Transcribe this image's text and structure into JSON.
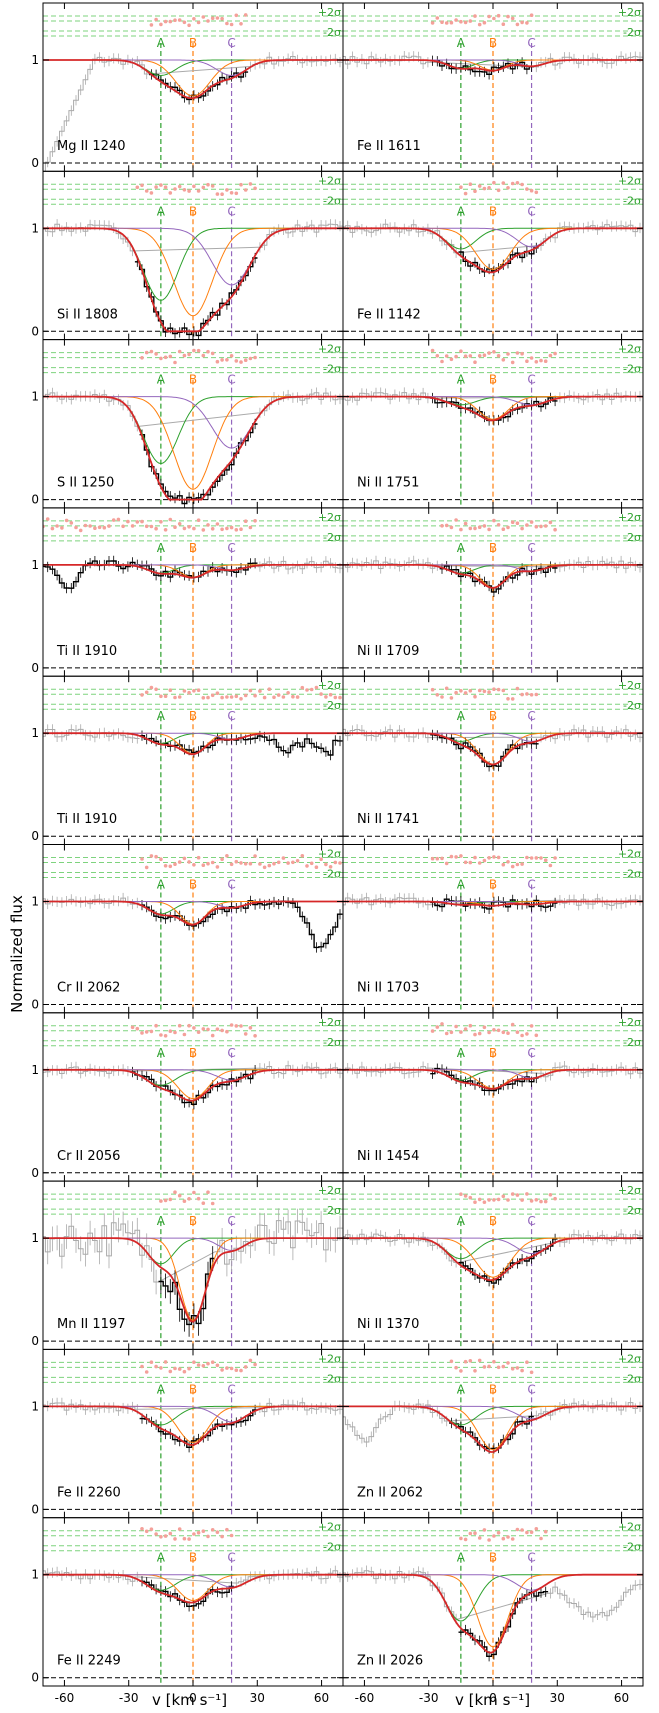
{
  "figure": {
    "ylabel": "Normalized flux",
    "xlabel": "v [km s⁻¹]",
    "xticks": [
      -60,
      -30,
      0,
      30,
      60
    ],
    "yticks": [
      "0",
      "1"
    ],
    "sigma_labels": [
      "+2σ",
      "-2σ"
    ],
    "components": [
      {
        "name": "A",
        "v": -15,
        "color": "#2ca02c"
      },
      {
        "name": "B",
        "v": 0,
        "color": "#ff7f0e"
      },
      {
        "name": "C",
        "v": 18,
        "color": "#9467bd"
      }
    ],
    "colors": {
      "data": "#aaaaaa",
      "fit_region": "#000000",
      "total_fit": "#d62728",
      "residuals": "#f4a09a",
      "sigma_lines": "#7ed37e"
    }
  },
  "chart_data": {
    "type": "line",
    "xlim": [
      -70,
      70
    ],
    "ylim": [
      0,
      1.4
    ],
    "panels": [
      {
        "label": "Mg II 1240",
        "col": 0,
        "row": 0,
        "depths": [
          0.15,
          0.35,
          0.15
        ],
        "widths": [
          7,
          8,
          7
        ],
        "fit_range": [
          -20,
          25
        ],
        "feature": "steep-rise-left"
      },
      {
        "label": "Si II 1808",
        "col": 0,
        "row": 1,
        "depths": [
          0.7,
          0.85,
          0.55
        ],
        "widths": [
          8,
          9,
          9
        ],
        "fit_range": [
          -28,
          30
        ]
      },
      {
        "label": "S II 1250",
        "col": 0,
        "row": 2,
        "depths": [
          0.65,
          0.9,
          0.5
        ],
        "widths": [
          8,
          9,
          9
        ],
        "fit_range": [
          -25,
          30
        ]
      },
      {
        "label": "Ti II 1910",
        "col": 0,
        "row": 3,
        "depths": [
          0.08,
          0.12,
          0.05
        ],
        "widths": [
          6,
          6,
          6
        ],
        "fit_range": [
          -70,
          30
        ],
        "feature": "dip-left"
      },
      {
        "label": "Ti II 1910",
        "col": 0,
        "row": 4,
        "depths": [
          0.1,
          0.2,
          0.06
        ],
        "widths": [
          6,
          6,
          6
        ],
        "fit_range": [
          -25,
          70
        ],
        "feature": "dips-right"
      },
      {
        "label": "Cr II 2062",
        "col": 0,
        "row": 5,
        "depths": [
          0.12,
          0.22,
          0.06
        ],
        "widths": [
          6,
          6,
          6
        ],
        "fit_range": [
          -25,
          70
        ],
        "feature": "big-dip-right"
      },
      {
        "label": "Cr II 2056",
        "col": 0,
        "row": 6,
        "depths": [
          0.15,
          0.28,
          0.1
        ],
        "widths": [
          7,
          7,
          7
        ],
        "fit_range": [
          -30,
          30
        ]
      },
      {
        "label": "Mn II 1197",
        "col": 0,
        "row": 7,
        "depths": [
          0.25,
          0.8,
          0.12
        ],
        "widths": [
          6,
          6,
          6
        ],
        "fit_range": [
          -15,
          10
        ],
        "feature": "noisy"
      },
      {
        "label": "Fe II 2260",
        "col": 0,
        "row": 8,
        "depths": [
          0.18,
          0.35,
          0.15
        ],
        "widths": [
          7,
          7,
          7
        ],
        "fit_range": [
          -25,
          30
        ]
      },
      {
        "label": "Fe II 2249",
        "col": 0,
        "row": 9,
        "depths": [
          0.15,
          0.25,
          0.12
        ],
        "widths": [
          7,
          7,
          7
        ],
        "fit_range": [
          -25,
          20
        ]
      },
      {
        "label": "Fe II 1611",
        "col": 1,
        "row": 0,
        "depths": [
          0.08,
          0.1,
          0.06
        ],
        "widths": [
          6,
          6,
          6
        ],
        "fit_range": [
          -30,
          20
        ]
      },
      {
        "label": "Fe II 1142",
        "col": 1,
        "row": 1,
        "depths": [
          0.2,
          0.4,
          0.18
        ],
        "widths": [
          7,
          8,
          7
        ],
        "fit_range": [
          -15,
          22
        ]
      },
      {
        "label": "Ni II 1751",
        "col": 1,
        "row": 2,
        "depths": [
          0.08,
          0.22,
          0.08
        ],
        "widths": [
          7,
          7,
          7
        ],
        "fit_range": [
          -30,
          30
        ]
      },
      {
        "label": "Ni II 1709",
        "col": 1,
        "row": 3,
        "depths": [
          0.08,
          0.22,
          0.06
        ],
        "widths": [
          6,
          6,
          6
        ],
        "fit_range": [
          -25,
          30
        ]
      },
      {
        "label": "Ni II 1741",
        "col": 1,
        "row": 4,
        "depths": [
          0.08,
          0.3,
          0.08
        ],
        "widths": [
          6,
          7,
          6
        ],
        "fit_range": [
          -30,
          22
        ]
      },
      {
        "label": "Ni II 1703",
        "col": 1,
        "row": 5,
        "depths": [
          0.03,
          0.04,
          0.03
        ],
        "widths": [
          6,
          6,
          6
        ],
        "fit_range": [
          -30,
          30
        ]
      },
      {
        "label": "Ni II 1454",
        "col": 1,
        "row": 6,
        "depths": [
          0.1,
          0.18,
          0.08
        ],
        "widths": [
          6,
          7,
          6
        ],
        "fit_range": [
          -30,
          22
        ]
      },
      {
        "label": "Ni II 1370",
        "col": 1,
        "row": 7,
        "depths": [
          0.2,
          0.38,
          0.15
        ],
        "widths": [
          7,
          8,
          7
        ],
        "fit_range": [
          -15,
          30
        ]
      },
      {
        "label": "Zn II 2062",
        "col": 1,
        "row": 8,
        "depths": [
          0.18,
          0.42,
          0.12
        ],
        "widths": [
          7,
          7,
          7
        ],
        "fit_range": [
          -20,
          20
        ],
        "feature": "dip-left-zn"
      },
      {
        "label": "Zn II 2026",
        "col": 1,
        "row": 9,
        "depths": [
          0.45,
          0.7,
          0.15
        ],
        "widths": [
          7,
          7,
          7
        ],
        "fit_range": [
          -15,
          25
        ],
        "feature": "dip-right-zn"
      }
    ]
  }
}
